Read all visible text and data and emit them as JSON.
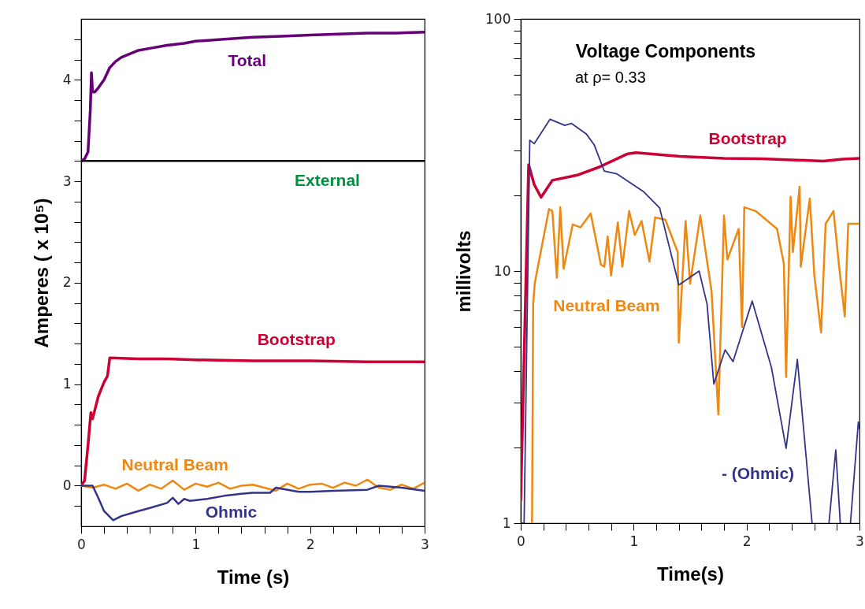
{
  "chart_data": [
    {
      "type": "line",
      "xlabel": "Time (s)",
      "ylabel": "Amperes ( x 10⁵)",
      "xlim": [
        0,
        3
      ],
      "ylim": [
        -0.4,
        4.6
      ],
      "xticks": [
        0,
        {
          "value": 0.2,
          "label": null
        },
        {
          "value": 0.4,
          "label": null
        },
        {
          "value": 0.6,
          "label": null
        },
        {
          "value": 0.8,
          "label": null
        },
        1,
        {
          "value": 1.2,
          "label": null
        },
        {
          "value": 1.4,
          "label": null
        },
        {
          "value": 1.6,
          "label": null
        },
        {
          "value": 1.8,
          "label": null
        },
        2,
        {
          "value": 2.2,
          "label": null
        },
        {
          "value": 2.4,
          "label": null
        },
        {
          "value": 2.6,
          "label": null
        },
        {
          "value": 2.8,
          "label": null
        },
        3
      ],
      "yticks": [
        {
          "value": -0.2,
          "label": null
        },
        0,
        {
          "value": 0.2,
          "label": null
        },
        {
          "value": 0.4,
          "label": null
        },
        {
          "value": 0.6,
          "label": null
        },
        {
          "value": 0.8,
          "label": null
        },
        1,
        {
          "value": 1.2,
          "label": null
        },
        {
          "value": 1.4,
          "label": null
        },
        {
          "value": 1.6,
          "label": null
        },
        {
          "value": 1.8,
          "label": null
        },
        2,
        {
          "value": 2.2,
          "label": null
        },
        {
          "value": 2.4,
          "label": null
        },
        {
          "value": 2.6,
          "label": null
        },
        {
          "value": 2.8,
          "label": null
        },
        3,
        {
          "value": 3.2,
          "label": null
        },
        {
          "value": 3.4,
          "label": null
        },
        {
          "value": 3.6,
          "label": null
        },
        {
          "value": 3.8,
          "label": null
        },
        4,
        {
          "value": 4.2,
          "label": null
        },
        {
          "value": 4.4,
          "label": null
        }
      ],
      "series": [
        {
          "name": "Total",
          "color": "#660077",
          "x": [
            0,
            0.03,
            0.06,
            0.08,
            0.09,
            0.1,
            0.12,
            0.15,
            0.2,
            0.25,
            0.3,
            0.35,
            0.5,
            0.6,
            0.75,
            0.9,
            1.0,
            1.25,
            1.5,
            1.75,
            2.0,
            2.25,
            2.5,
            2.75,
            3.0
          ],
          "values": [
            3.2,
            3.22,
            3.29,
            3.7,
            4.07,
            3.88,
            3.88,
            3.92,
            4.0,
            4.12,
            4.18,
            4.22,
            4.29,
            4.31,
            4.34,
            4.36,
            4.38,
            4.4,
            4.42,
            4.43,
            4.44,
            4.45,
            4.46,
            4.46,
            4.47
          ]
        },
        {
          "name": "External",
          "color": "#000000",
          "x": [
            0,
            3
          ],
          "values": [
            3.2,
            3.2
          ]
        },
        {
          "name": "Bootstrap",
          "color": "#cc0033",
          "x": [
            0,
            0.03,
            0.06,
            0.085,
            0.1,
            0.15,
            0.2,
            0.23,
            0.25,
            0.5,
            0.75,
            1.0,
            1.5,
            2.0,
            2.5,
            3.0
          ],
          "values": [
            0,
            0.05,
            0.4,
            0.72,
            0.66,
            0.88,
            1.02,
            1.08,
            1.26,
            1.25,
            1.25,
            1.24,
            1.23,
            1.23,
            1.22,
            1.22
          ]
        },
        {
          "name": "Neutral Beam",
          "color": "#ee8811",
          "x": [
            0,
            0.1,
            0.2,
            0.3,
            0.4,
            0.5,
            0.6,
            0.7,
            0.8,
            0.9,
            1.0,
            1.1,
            1.2,
            1.3,
            1.4,
            1.5,
            1.6,
            1.7,
            1.8,
            1.9,
            2.0,
            2.1,
            2.2,
            2.3,
            2.4,
            2.5,
            2.6,
            2.7,
            2.8,
            2.9,
            3.0
          ],
          "values": [
            0,
            -0.02,
            0.01,
            -0.03,
            0.02,
            -0.05,
            0.01,
            -0.03,
            0.05,
            -0.04,
            0.02,
            -0.01,
            0.03,
            -0.03,
            0,
            0.01,
            -0.02,
            -0.05,
            0.02,
            -0.03,
            0.01,
            0.02,
            -0.02,
            0.03,
            0,
            0.06,
            -0.02,
            -0.04,
            0.01,
            -0.03,
            0.03
          ]
        },
        {
          "name": "Ohmic",
          "color": "#333388",
          "x": [
            0,
            0.1,
            0.15,
            0.2,
            0.28,
            0.35,
            0.5,
            0.6,
            0.75,
            0.8,
            0.85,
            0.9,
            0.95,
            1.1,
            1.25,
            1.4,
            1.5,
            1.65,
            1.7,
            1.9,
            2.0,
            2.2,
            2.5,
            2.6,
            2.8,
            3.0
          ],
          "values": [
            0,
            0,
            -0.12,
            -0.25,
            -0.34,
            -0.3,
            -0.25,
            -0.22,
            -0.17,
            -0.12,
            -0.18,
            -0.13,
            -0.15,
            -0.13,
            -0.1,
            -0.08,
            -0.07,
            -0.07,
            -0.02,
            -0.06,
            -0.06,
            -0.05,
            -0.04,
            0,
            -0.02,
            -0.05
          ]
        }
      ]
    },
    {
      "type": "line",
      "title": "Voltage Components",
      "subtitle": "at ρ= 0.33",
      "xlabel": "Time(s)",
      "ylabel": "millivolts",
      "log": "y",
      "xlim": [
        0,
        3
      ],
      "ylim": [
        1,
        100
      ],
      "xticks": [
        0,
        {
          "value": 0.2,
          "label": null
        },
        {
          "value": 0.4,
          "label": null
        },
        {
          "value": 0.6,
          "label": null
        },
        {
          "value": 0.8,
          "label": null
        },
        1,
        {
          "value": 1.2,
          "label": null
        },
        {
          "value": 1.4,
          "label": null
        },
        {
          "value": 1.6,
          "label": null
        },
        {
          "value": 1.8,
          "label": null
        },
        2,
        {
          "value": 2.2,
          "label": null
        },
        {
          "value": 2.4,
          "label": null
        },
        {
          "value": 2.6,
          "label": null
        },
        {
          "value": 2.8,
          "label": null
        },
        3
      ],
      "yticks": [
        1,
        {
          "value": 2,
          "label": null
        },
        {
          "value": 3,
          "label": null
        },
        {
          "value": 4,
          "label": null
        },
        {
          "value": 5,
          "label": null
        },
        {
          "value": 6,
          "label": null
        },
        {
          "value": 7,
          "label": null
        },
        {
          "value": 8,
          "label": null
        },
        {
          "value": 9,
          "label": null
        },
        10,
        {
          "value": 20,
          "label": null
        },
        {
          "value": 30,
          "label": null
        },
        {
          "value": 40,
          "label": null
        },
        {
          "value": 50,
          "label": null
        },
        {
          "value": 60,
          "label": null
        },
        {
          "value": 70,
          "label": null
        },
        {
          "value": 80,
          "label": null
        },
        {
          "value": 90,
          "label": null
        },
        100
      ],
      "series": [
        {
          "name": "Bootstrap",
          "color": "#cc0033",
          "x": [
            0,
            0.07,
            0.12,
            0.18,
            0.28,
            0.5,
            0.7,
            0.94,
            1.02,
            1.41,
            1.8,
            2.13,
            2.4,
            2.68,
            2.85,
            3.0
          ],
          "values": [
            1.23,
            26.4,
            22,
            19.6,
            22.9,
            24,
            25.9,
            29.1,
            29.5,
            28.5,
            28,
            27.9,
            27.6,
            27.3,
            27.8,
            28
          ]
        },
        {
          "name": "Neutral Beam",
          "color": "#ee8811",
          "x": [
            0.1,
            0.11,
            0.125,
            0.25,
            0.28,
            0.32,
            0.35,
            0.38,
            0.46,
            0.53,
            0.62,
            0.71,
            0.74,
            0.77,
            0.8,
            0.86,
            0.9,
            0.96,
            1.01,
            1.07,
            1.14,
            1.19,
            1.28,
            1.39,
            1.4,
            1.46,
            1.5,
            1.59,
            1.69,
            1.75,
            1.8,
            1.83,
            1.93,
            1.96,
            1.98,
            2.08,
            2.27,
            2.33,
            2.35,
            2.39,
            2.41,
            2.47,
            2.48,
            2.56,
            2.6,
            2.66,
            2.7,
            2.77,
            2.82,
            2.87,
            2.9,
            3.0
          ],
          "values": [
            1,
            7.4,
            9,
            17.6,
            17.3,
            9.4,
            17.9,
            10.2,
            15.3,
            14.9,
            16.9,
            10.6,
            10.4,
            13.7,
            9.6,
            15.6,
            10.4,
            17.3,
            13.9,
            15.8,
            10.9,
            16.3,
            16,
            11.9,
            5.2,
            15.8,
            8.9,
            16.6,
            8.3,
            2.7,
            16.6,
            11.1,
            14.7,
            6,
            17.9,
            17.3,
            14.7,
            10.7,
            3.8,
            19.7,
            11.9,
            21.6,
            10.4,
            19.4,
            9.6,
            5.7,
            15.4,
            17.3,
            10.4,
            6.6,
            15.4,
            15.4
          ]
        },
        {
          "name": "- (Ohmic)",
          "color": "#333388",
          "x": [
            0,
            0.03,
            0.08,
            0.12,
            0.26,
            0.39,
            0.45,
            0.58,
            0.65,
            0.74,
            0.85,
            1.09,
            1.23,
            1.4,
            1.58,
            1.65,
            1.71,
            1.81,
            1.88,
            2.05,
            2.22,
            2.35,
            2.45,
            2.58,
            2.65,
            2.73,
            2.79,
            2.83,
            2.88,
            2.92,
            2.99,
            3.0
          ],
          "values": [
            1,
            1,
            33,
            32,
            40,
            37.8,
            38.5,
            35,
            31.7,
            24.9,
            24.3,
            20.6,
            17.8,
            8.8,
            10,
            7.4,
            3.56,
            4.87,
            4.37,
            7.6,
            4.15,
            1.98,
            4.46,
            1,
            null,
            1,
            1.95,
            1,
            null,
            1,
            2.52,
            2.37
          ]
        }
      ]
    }
  ]
}
